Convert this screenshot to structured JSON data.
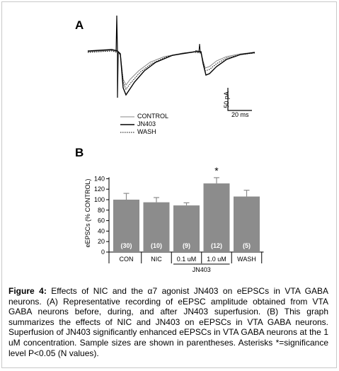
{
  "figure": {
    "panel_a": {
      "label": "A",
      "scale_y_label": "50 pA",
      "scale_x_label": "20 ms",
      "legend": [
        {
          "name": "CONTROL",
          "style": "thin-gray"
        },
        {
          "name": "JN403",
          "style": "solid-black"
        },
        {
          "name": "WASH",
          "style": "dotted"
        }
      ]
    },
    "panel_b": {
      "label": "B",
      "group_label": "JN403",
      "significance_marker": "*"
    },
    "caption": {
      "heading": "Figure 4:",
      "text": " Effects of NIC and the α7 agonist JN403 on eEPSCs in VTA GABA neurons. (A) Representative recording of eEPSC amplitude obtained from VTA GABA neurons before, during, and after JN403 superfusion. (B) This graph summarizes the effects of NIC and JN403 on eEPSCs in VTA GABA neurons. Superfusion of JN403 significantly enhanced eEPSCs in VTA GABA neurons at the 1 uM concentration. Sample sizes are shown in parentheses. Asterisks *=significance level P<0.05 (N values)."
    }
  },
  "chart_data": {
    "type": "bar",
    "categories": [
      "CON",
      "NIC",
      "0.1 uM",
      "1.0 uM",
      "WASH"
    ],
    "values": [
      100,
      95,
      89,
      131,
      106
    ],
    "errors": [
      12,
      9,
      5,
      11,
      12
    ],
    "sample_sizes": [
      "(30)",
      "(10)",
      "(9)",
      "(12)",
      "(5)"
    ],
    "significant": [
      false,
      false,
      false,
      true,
      false
    ],
    "ylabel": "eEPSCs (% CONTROL)",
    "yticks": [
      0,
      20,
      40,
      60,
      80,
      100,
      120,
      140
    ],
    "ylim": [
      0,
      150
    ],
    "bar_color": "#8c8c8c",
    "grid": false
  }
}
